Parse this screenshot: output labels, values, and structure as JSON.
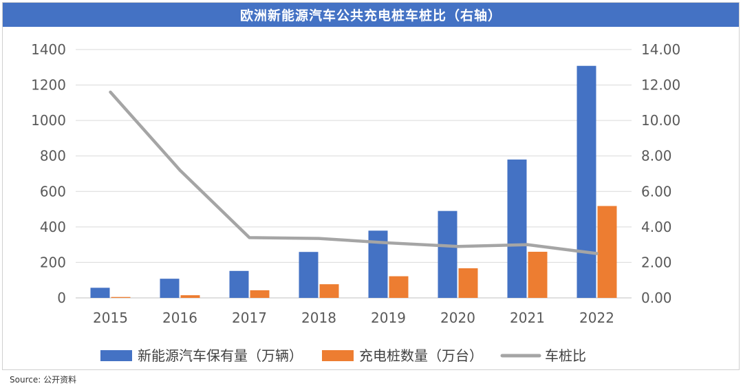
{
  "chart_data": {
    "type": "bar",
    "title": "欧洲新能源汽车公共充电桩车桩比（右轴）",
    "categories": [
      "2015",
      "2016",
      "2017",
      "2018",
      "2019",
      "2020",
      "2021",
      "2022"
    ],
    "series": [
      {
        "name": "新能源汽车保有量（万辆）",
        "type": "bar",
        "axis": "left",
        "color": "#4472c4",
        "values": [
          57,
          108,
          152,
          259,
          379,
          490,
          780,
          1308
        ]
      },
      {
        "name": "充电桩数量（万台）",
        "type": "bar",
        "axis": "left",
        "color": "#ed7d31",
        "values": [
          5,
          15,
          43,
          77,
          122,
          167,
          260,
          518
        ]
      },
      {
        "name": "车桩比",
        "type": "line",
        "axis": "right",
        "color": "#a5a5a5",
        "values": [
          11.6,
          7.2,
          3.4,
          3.35,
          3.1,
          2.9,
          3.0,
          2.5
        ]
      }
    ],
    "y_left": {
      "ylim": [
        0,
        1400
      ],
      "ticks": [
        "0",
        "200",
        "400",
        "600",
        "800",
        "1000",
        "1200",
        "1400"
      ]
    },
    "y_right": {
      "ylim": [
        0,
        14
      ],
      "ticks": [
        "0.00",
        "2.00",
        "4.00",
        "6.00",
        "8.00",
        "10.00",
        "12.00",
        "14.00"
      ]
    },
    "grid": true,
    "legend_position": "bottom"
  },
  "source": "Source:   公开资料"
}
